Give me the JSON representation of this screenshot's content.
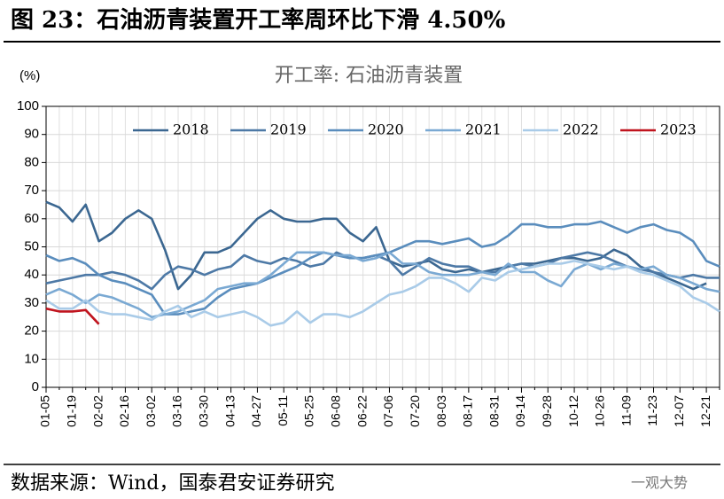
{
  "header": {
    "title": "图 23：石油沥青装置开工率周环比下滑 4.50%"
  },
  "chart_data": {
    "type": "line",
    "title": "开工率: 石油沥青装置",
    "y_label": "(%)",
    "categories": [
      "01-05",
      null,
      "01-19",
      null,
      "02-02",
      null,
      "02-16",
      null,
      "03-02",
      null,
      "03-16",
      null,
      "03-30",
      null,
      "04-13",
      null,
      "04-27",
      null,
      "05-11",
      null,
      "05-25",
      null,
      "06-08",
      null,
      "06-22",
      null,
      "07-06",
      null,
      "07-20",
      null,
      "08-03",
      null,
      "08-17",
      null,
      "08-31",
      null,
      "09-14",
      null,
      "09-28",
      null,
      "10-12",
      null,
      "10-26",
      null,
      "11-09",
      null,
      "11-23",
      null,
      "12-07",
      null,
      "12-21",
      null
    ],
    "series": [
      {
        "name": "2018",
        "color": "#3b6791",
        "values": [
          66,
          64,
          59,
          65,
          52,
          55,
          60,
          63,
          60,
          49,
          35,
          40,
          48,
          48,
          50,
          55,
          60,
          63,
          60,
          59,
          59,
          60,
          60,
          55,
          52,
          57,
          45,
          43,
          44,
          45,
          42,
          41,
          42,
          41,
          42,
          43,
          44,
          44,
          45,
          46,
          46,
          45,
          46,
          49,
          47,
          43,
          41,
          39,
          37,
          35,
          37,
          null
        ]
      },
      {
        "name": "2019",
        "color": "#4d79a6",
        "values": [
          37,
          38,
          39,
          40,
          40,
          41,
          40,
          38,
          35,
          40,
          43,
          42,
          40,
          42,
          43,
          47,
          45,
          44,
          46,
          45,
          43,
          44,
          48,
          46,
          46,
          47,
          45,
          40,
          43,
          46,
          44,
          43,
          43,
          41,
          41,
          43,
          44,
          43,
          44,
          46,
          47,
          48,
          47,
          45,
          43,
          42,
          41,
          40,
          39,
          40,
          39,
          39
        ]
      },
      {
        "name": "2020",
        "color": "#5a8dbd",
        "values": [
          47,
          45,
          46,
          44,
          40,
          38,
          37,
          35,
          33,
          26,
          26,
          27,
          28,
          32,
          35,
          36,
          37,
          39,
          41,
          43,
          46,
          48,
          47,
          46,
          46,
          47,
          48,
          50,
          52,
          52,
          51,
          52,
          53,
          50,
          51,
          54,
          58,
          58,
          57,
          57,
          58,
          58,
          59,
          57,
          55,
          57,
          58,
          56,
          55,
          52,
          45,
          43
        ]
      },
      {
        "name": "2021",
        "color": "#7aa9d3",
        "values": [
          33,
          35,
          33,
          30,
          33,
          32,
          30,
          28,
          25,
          26,
          27,
          29,
          31,
          35,
          36,
          37,
          37,
          40,
          44,
          48,
          48,
          48,
          47,
          47,
          45,
          46,
          48,
          44,
          44,
          41,
          40,
          40,
          40,
          41,
          40,
          44,
          41,
          41,
          38,
          36,
          42,
          44,
          42,
          44,
          43,
          42,
          43,
          40,
          39,
          37,
          35,
          34
        ]
      },
      {
        "name": "2022",
        "color": "#a9cbe8",
        "values": [
          31,
          28,
          28,
          31,
          27,
          26,
          26,
          25,
          24,
          27,
          29,
          25,
          27,
          25,
          26,
          27,
          25,
          22,
          23,
          27,
          23,
          26,
          26,
          25,
          27,
          30,
          33,
          34,
          36,
          39,
          39,
          37,
          34,
          39,
          38,
          41,
          42,
          43,
          44,
          44,
          45,
          44,
          43,
          42,
          43,
          41,
          40,
          38,
          36,
          32,
          30,
          27
        ]
      },
      {
        "name": "2023",
        "color": "#c0141e",
        "values": [
          28,
          27,
          27,
          27.5,
          22.5,
          null,
          null,
          null,
          null,
          null,
          null,
          null,
          null,
          null,
          null,
          null,
          null,
          null,
          null,
          null,
          null,
          null,
          null,
          null,
          null,
          null,
          null,
          null,
          null,
          null,
          null,
          null,
          null,
          null,
          null,
          null,
          null,
          null,
          null,
          null,
          null,
          null,
          null,
          null,
          null,
          null,
          null,
          null,
          null,
          null,
          null,
          null
        ]
      }
    ],
    "ylim": [
      0,
      100
    ],
    "yticks": [
      0,
      10,
      20,
      30,
      40,
      50,
      60,
      70,
      80,
      90,
      100
    ],
    "grid": true,
    "legend": "top"
  },
  "footer": {
    "source": "数据来源：Wind，国泰君安证券研究",
    "watermark": "一观大势"
  }
}
